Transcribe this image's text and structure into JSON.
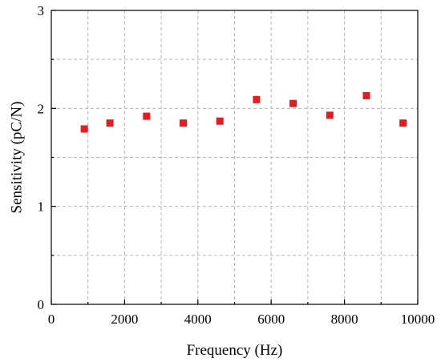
{
  "chart_data": {
    "type": "scatter",
    "title": "",
    "xlabel": "Frequency (Hz)",
    "ylabel": "Sensitivity (pC/N)",
    "xlim": [
      0,
      10000
    ],
    "ylim": [
      0,
      3
    ],
    "xticks": [
      0,
      2000,
      4000,
      6000,
      8000,
      10000
    ],
    "yticks": [
      0,
      1,
      2,
      3
    ],
    "xtick_labels": [
      "0",
      "2000",
      "4000",
      "6000",
      "8000",
      "10000"
    ],
    "ytick_labels": [
      "0",
      "1",
      "2",
      "3"
    ],
    "grid": true,
    "legend": "none",
    "marker_color": "#e8191f",
    "marker": "square",
    "x": [
      900,
      1600,
      2600,
      3600,
      4600,
      5600,
      6600,
      7600,
      8600,
      9600
    ],
    "y": [
      1.79,
      1.85,
      1.92,
      1.85,
      1.87,
      2.09,
      2.05,
      1.93,
      2.13,
      1.85
    ]
  }
}
